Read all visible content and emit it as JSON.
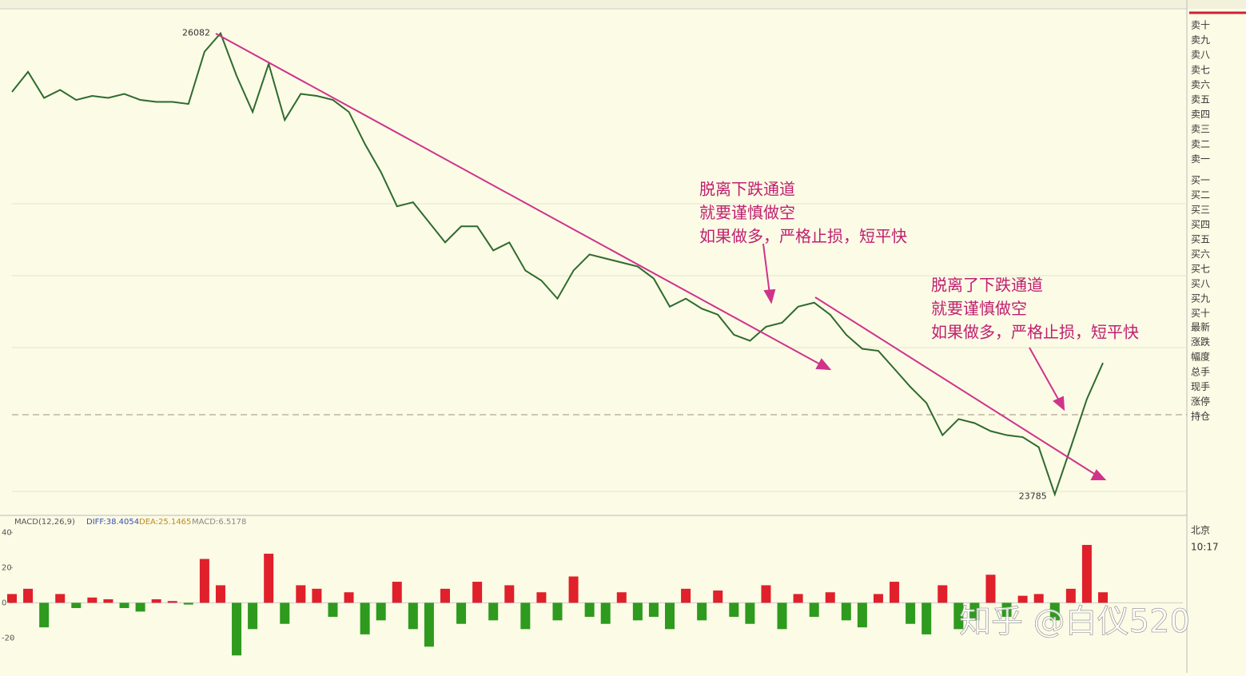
{
  "chart_data": [
    {
      "type": "line",
      "name": "price",
      "values": [
        25790,
        25890,
        25760,
        25800,
        25750,
        25770,
        25760,
        25780,
        25750,
        25740,
        25740,
        25730,
        25990,
        26082,
        25870,
        25690,
        25930,
        25650,
        25780,
        25770,
        25750,
        25690,
        25530,
        25390,
        25220,
        25240,
        25140,
        25040,
        25120,
        25120,
        25000,
        25040,
        24900,
        24850,
        24760,
        24900,
        24980,
        24960,
        24940,
        24920,
        24860,
        24720,
        24760,
        24710,
        24680,
        24580,
        24550,
        24620,
        24640,
        24720,
        24740,
        24680,
        24580,
        24510,
        24500,
        24410,
        24320,
        24240,
        24080,
        24160,
        24140,
        24100,
        24080,
        24070,
        24020,
        23785,
        24020,
        24260,
        24440
      ],
      "color": "#2e6a2e",
      "ylim": [
        23700,
        26200
      ],
      "annotations": [
        [
          "脱离下跌通道",
          "就要谨慎做空",
          "如果做多，严格止损，短平快"
        ],
        [
          "脱离了下跌通道",
          "就要谨慎做空",
          "如果做多，严格止损，短平快"
        ]
      ]
    },
    {
      "type": "bar",
      "name": "macd",
      "title": "MACD(12,26,9)",
      "indicators": [
        {
          "label": "DIFF:38.4054",
          "color": "#3a4fb0"
        },
        {
          "label": "DEA:25.1465",
          "color": "#c08a20"
        },
        {
          "label": "MACD:6.5178",
          "color": "#888888"
        }
      ],
      "values": [
        5,
        8,
        -14,
        5,
        -3,
        3,
        2,
        -3,
        -5,
        2,
        1,
        -1,
        25,
        10,
        -30,
        -15,
        28,
        -12,
        10,
        8,
        -8,
        6,
        -18,
        -10,
        12,
        -15,
        -25,
        8,
        -12,
        12,
        -10,
        10,
        -15,
        6,
        -10,
        15,
        -8,
        -12,
        6,
        -10,
        -8,
        -15,
        8,
        -10,
        7,
        -8,
        -12,
        10,
        -15,
        5,
        -8,
        6,
        -10,
        -14,
        5,
        12,
        -12,
        -18,
        10,
        -15,
        -10,
        16,
        -8,
        4,
        5,
        -10,
        8,
        33,
        6
      ],
      "up_color": "#e0202a",
      "down_color": "#2e9a1e",
      "ylim": [
        -39,
        43
      ],
      "yticks": [
        40,
        20,
        0,
        -20
      ]
    }
  ],
  "side_panel": {
    "labels": [
      "卖十",
      "卖九",
      "卖八",
      "卖七",
      "卖六",
      "卖五",
      "卖四",
      "卖三",
      "卖二",
      "卖一",
      "买一",
      "买二",
      "买三",
      "买四",
      "买五",
      "买六",
      "买七",
      "买八",
      "买九",
      "买十",
      "最新",
      "涨跌",
      "幅度",
      "总手",
      "现手",
      "涨停",
      "持仓"
    ],
    "city": "北京",
    "time": "10:17"
  },
  "watermark": "知乎 @白仪520"
}
